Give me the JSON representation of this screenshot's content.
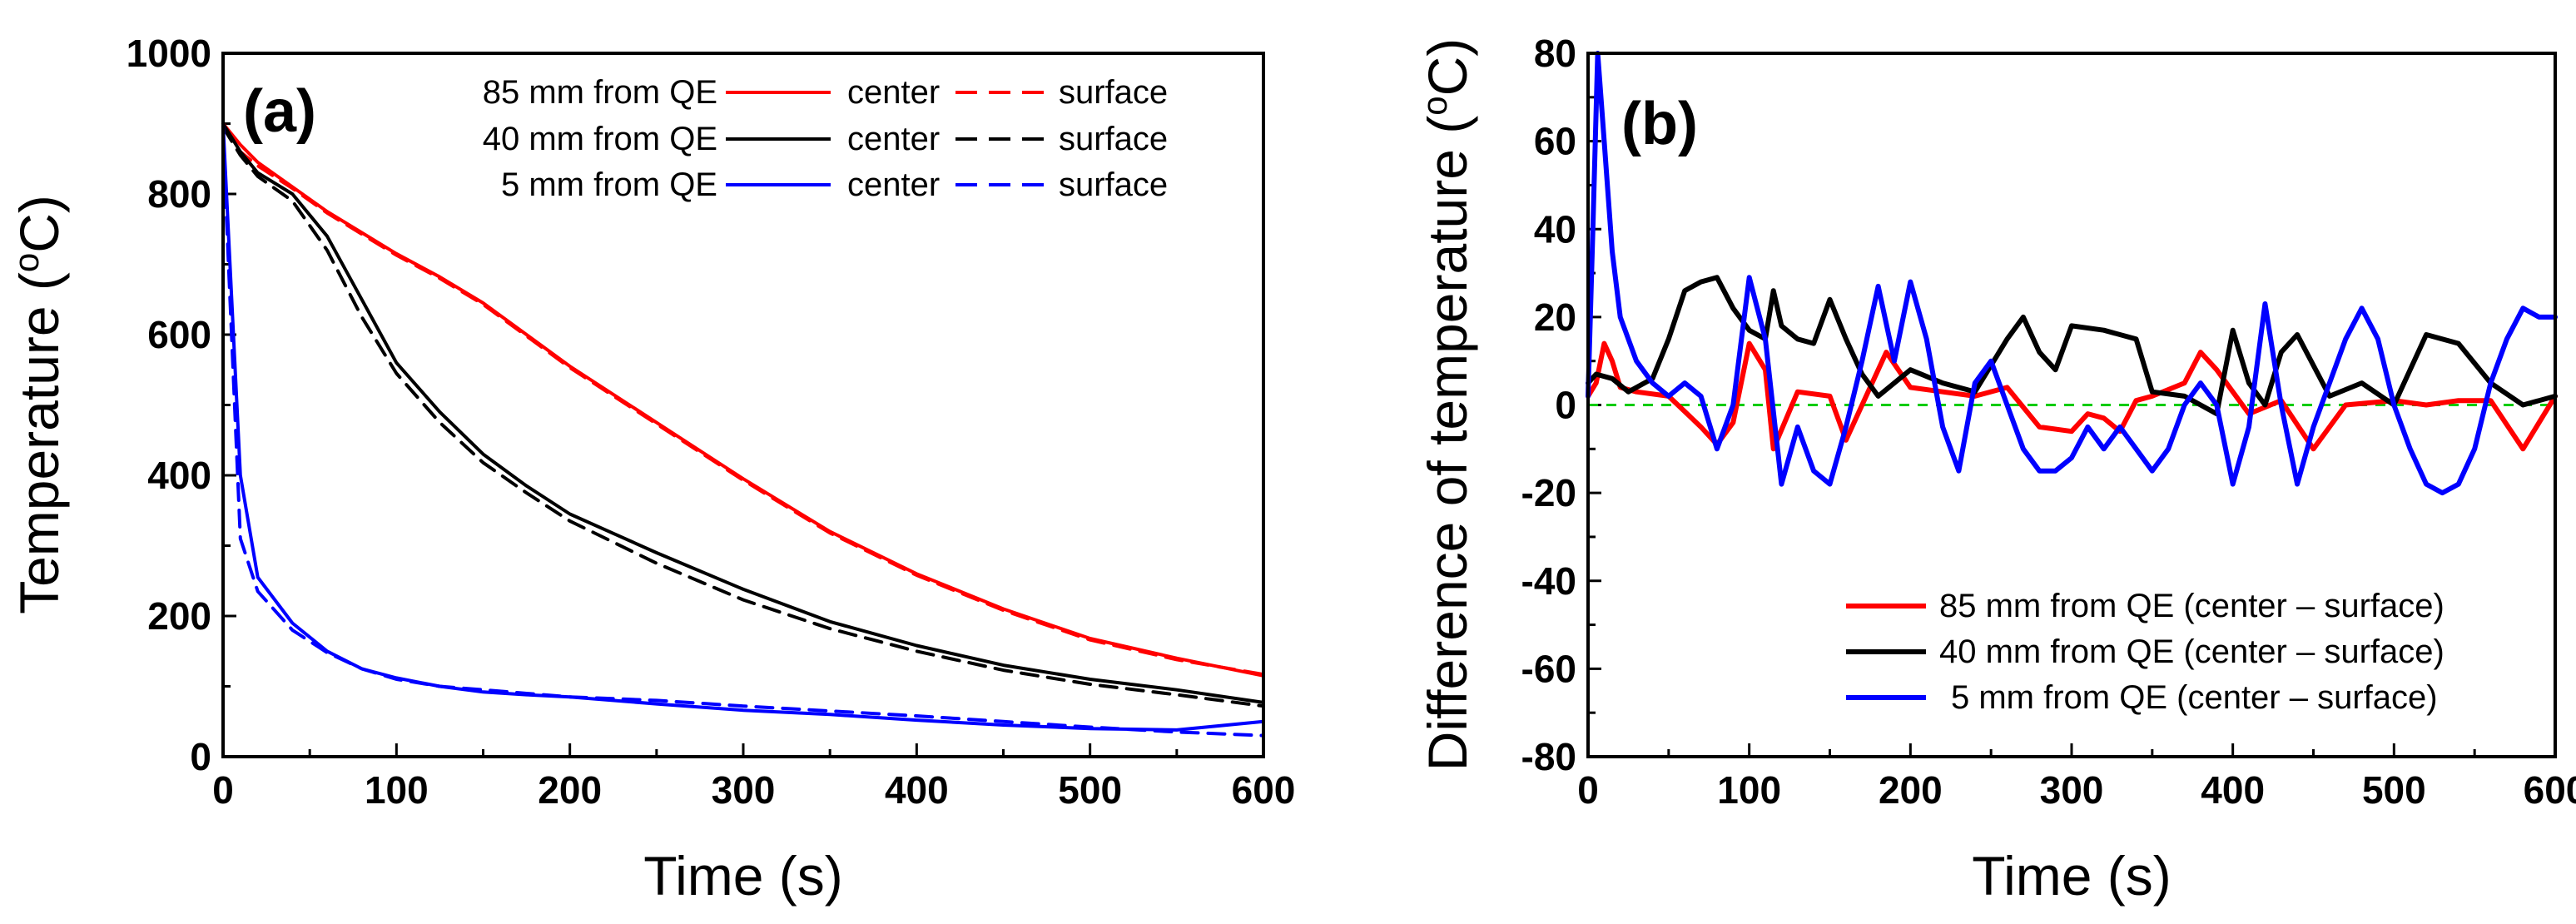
{
  "chart_data": [
    {
      "type": "line",
      "panel_label": "(a)",
      "xlabel": "Time (s)",
      "ylabel": {
        "main": "Temperature (",
        "sup": "o",
        "unit": "C)"
      },
      "xlim": [
        0,
        600
      ],
      "ylim": [
        0,
        1000
      ],
      "xticks": [
        0,
        100,
        200,
        300,
        400,
        500,
        600
      ],
      "yticks": [
        0,
        200,
        400,
        600,
        800,
        1000
      ],
      "legend_position": "top-right",
      "legend_rows": [
        {
          "label": "85 mm from QE",
          "center": "center",
          "surface": "surface",
          "color": "#ff0000"
        },
        {
          "label": "40 mm from QE",
          "center": "center",
          "surface": "surface",
          "color": "#000000"
        },
        {
          "label": "5 mm from QE",
          "center": "center",
          "surface": "surface",
          "color": "#0000ff"
        }
      ],
      "x": [
        0,
        10,
        20,
        40,
        60,
        80,
        100,
        125,
        150,
        175,
        200,
        250,
        300,
        350,
        400,
        450,
        500,
        550,
        600
      ],
      "series": [
        {
          "name": "85 mm from QE center",
          "color": "#ff0000",
          "style": "solid",
          "values": [
            900,
            870,
            845,
            810,
            775,
            745,
            715,
            682,
            645,
            600,
            555,
            475,
            395,
            320,
            260,
            210,
            168,
            140,
            115
          ]
        },
        {
          "name": "85 mm from QE surface",
          "color": "#ff0000",
          "style": "dashed",
          "values": [
            895,
            860,
            840,
            808,
            773,
            743,
            713,
            680,
            643,
            598,
            553,
            473,
            393,
            318,
            258,
            208,
            166,
            138,
            117
          ]
        },
        {
          "name": "40 mm from QE center",
          "color": "#000000",
          "style": "solid",
          "values": [
            900,
            860,
            830,
            800,
            740,
            650,
            560,
            490,
            430,
            385,
            345,
            290,
            238,
            192,
            158,
            130,
            110,
            95,
            77
          ]
        },
        {
          "name": "40 mm from QE surface",
          "color": "#000000",
          "style": "dashed",
          "values": [
            895,
            855,
            825,
            790,
            720,
            625,
            545,
            475,
            418,
            375,
            335,
            275,
            223,
            182,
            150,
            123,
            103,
            88,
            72
          ]
        },
        {
          "name": "5 mm from QE center",
          "color": "#0000ff",
          "style": "solid",
          "values": [
            900,
            400,
            255,
            190,
            150,
            125,
            112,
            100,
            92,
            88,
            85,
            75,
            66,
            60,
            52,
            45,
            40,
            38,
            50
          ]
        },
        {
          "name": "5 mm from QE surface",
          "color": "#0000ff",
          "style": "dashed",
          "values": [
            880,
            310,
            235,
            180,
            148,
            125,
            110,
            100,
            95,
            90,
            85,
            80,
            72,
            65,
            58,
            50,
            42,
            35,
            30
          ]
        }
      ]
    },
    {
      "type": "line",
      "panel_label": "(b)",
      "xlabel": "Time (s)",
      "ylabel": {
        "main": "Difference of temperature (",
        "sup": "o",
        "unit": "C)"
      },
      "xlim": [
        0,
        600
      ],
      "ylim": [
        -80,
        80
      ],
      "xticks": [
        0,
        100,
        200,
        300,
        400,
        500,
        600
      ],
      "yticks": [
        -80,
        -60,
        -40,
        -20,
        0,
        20,
        40,
        60,
        80
      ],
      "legend_position": "bottom-right",
      "reference_line": {
        "y": 0,
        "color": "#00cc00",
        "style": "dashed"
      },
      "series": [
        {
          "name": "85 mm from QE (center – surface)",
          "color": "#ff0000",
          "x": [
            0,
            5,
            10,
            15,
            20,
            30,
            50,
            70,
            80,
            90,
            100,
            110,
            115,
            130,
            150,
            160,
            175,
            185,
            200,
            220,
            240,
            260,
            280,
            300,
            310,
            320,
            330,
            340,
            350,
            370,
            380,
            390,
            410,
            430,
            450,
            470,
            500,
            520,
            540,
            560,
            580,
            600
          ],
          "values": [
            2,
            5,
            14,
            10,
            4,
            3,
            2,
            -5,
            -9,
            -4,
            14,
            8,
            -10,
            3,
            2,
            -8,
            4,
            12,
            4,
            3,
            2,
            4,
            -5,
            -6,
            -2,
            -3,
            -6,
            1,
            2,
            5,
            12,
            8,
            -2,
            1,
            -10,
            0,
            1,
            0,
            1,
            1,
            -10,
            2
          ]
        },
        {
          "name": "40 mm from QE (center – surface)",
          "color": "#000000",
          "x": [
            0,
            5,
            15,
            25,
            40,
            50,
            60,
            70,
            80,
            90,
            100,
            110,
            115,
            120,
            130,
            140,
            150,
            160,
            170,
            180,
            200,
            220,
            240,
            260,
            270,
            280,
            290,
            300,
            320,
            340,
            350,
            370,
            390,
            400,
            410,
            420,
            430,
            440,
            460,
            480,
            500,
            520,
            540,
            560,
            580,
            600
          ],
          "values": [
            5,
            7,
            6,
            3,
            6,
            15,
            26,
            28,
            29,
            22,
            17,
            15,
            26,
            18,
            15,
            14,
            24,
            15,
            7,
            2,
            8,
            5,
            3,
            15,
            20,
            12,
            8,
            18,
            17,
            15,
            3,
            2,
            -2,
            17,
            5,
            0,
            12,
            16,
            2,
            5,
            0,
            16,
            14,
            5,
            0,
            2
          ]
        },
        {
          "name": "5 mm from QE (center – surface)",
          "color": "#0000ff",
          "x": [
            0,
            3,
            6,
            10,
            15,
            20,
            30,
            40,
            50,
            60,
            70,
            80,
            90,
            100,
            110,
            120,
            130,
            140,
            150,
            160,
            170,
            180,
            190,
            200,
            210,
            220,
            230,
            240,
            250,
            260,
            270,
            280,
            290,
            300,
            310,
            320,
            330,
            340,
            350,
            360,
            370,
            380,
            390,
            400,
            410,
            420,
            430,
            440,
            450,
            460,
            470,
            480,
            490,
            500,
            510,
            520,
            530,
            540,
            550,
            560,
            570,
            580,
            590,
            600
          ],
          "values": [
            2,
            40,
            80,
            60,
            35,
            20,
            10,
            5,
            2,
            5,
            2,
            -10,
            0,
            29,
            15,
            -18,
            -5,
            -15,
            -18,
            -5,
            10,
            27,
            10,
            28,
            15,
            -5,
            -15,
            5,
            10,
            0,
            -10,
            -15,
            -15,
            -12,
            -5,
            -10,
            -5,
            -10,
            -15,
            -10,
            0,
            5,
            0,
            -18,
            -5,
            23,
            0,
            -18,
            -5,
            5,
            15,
            22,
            15,
            0,
            -10,
            -18,
            -20,
            -18,
            -10,
            5,
            15,
            22,
            20,
            20
          ]
        }
      ]
    }
  ]
}
